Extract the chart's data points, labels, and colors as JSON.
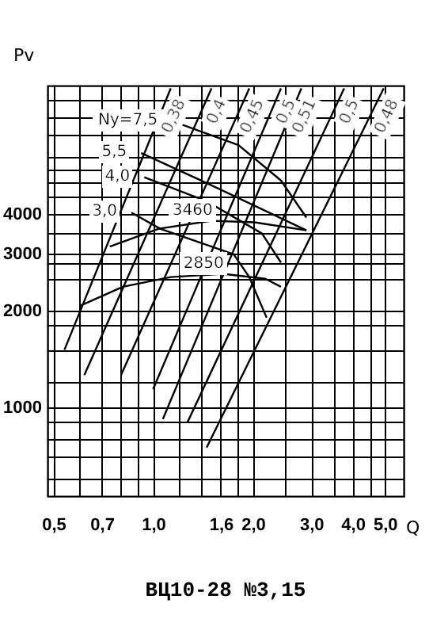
{
  "chart_data": {
    "type": "line",
    "title": "ВЦ10-28 №3,15",
    "xlabel": "Q",
    "ylabel": "Pv",
    "log": "xy",
    "grid": true,
    "legend": false,
    "xlim": [
      0.48,
      5.7
    ],
    "ylim": [
      530,
      10000
    ],
    "xticks": [
      {
        "value": 0.5,
        "label": "0,5"
      },
      {
        "value": 0.6,
        "label": null
      },
      {
        "value": 0.7,
        "label": "0,7"
      },
      {
        "value": 0.8,
        "label": null
      },
      {
        "value": 0.9,
        "label": null
      },
      {
        "value": 1.0,
        "label": "1,0"
      },
      {
        "value": 1.2,
        "label": null
      },
      {
        "value": 1.4,
        "label": null
      },
      {
        "value": 1.6,
        "label": "1,6"
      },
      {
        "value": 1.8,
        "label": null
      },
      {
        "value": 2.0,
        "label": "2,0"
      },
      {
        "value": 2.5,
        "label": null
      },
      {
        "value": 3.0,
        "label": "3,0"
      },
      {
        "value": 3.5,
        "label": null
      },
      {
        "value": 4.0,
        "label": "4,0"
      },
      {
        "value": 4.5,
        "label": null
      },
      {
        "value": 5.0,
        "label": "5,0"
      }
    ],
    "yticks": [
      {
        "value": 600,
        "label": null
      },
      {
        "value": 700,
        "label": null
      },
      {
        "value": 800,
        "label": null
      },
      {
        "value": 900,
        "label": null
      },
      1000,
      {
        "value": 1200,
        "label": null
      },
      {
        "value": 1500,
        "label": null
      },
      {
        "value": 1800,
        "label": null
      },
      2000,
      {
        "value": 2500,
        "label": null
      },
      {
        "value": 2800,
        "label": null
      },
      3000,
      {
        "value": 3500,
        "label": null
      },
      4000,
      {
        "value": 4500,
        "label": null
      },
      {
        "value": 5000,
        "label": null
      },
      {
        "value": 5500,
        "label": null
      },
      {
        "value": 6000,
        "label": null
      },
      {
        "value": 7000,
        "label": null
      },
      {
        "value": 8000,
        "label": null
      },
      {
        "value": 9000,
        "label": null
      }
    ],
    "series": [
      {
        "name": "3460",
        "color": "#000000",
        "x": [
          0.74,
          1.04,
          1.5,
          2.02,
          2.9
        ],
        "values": [
          3160,
          3590,
          3800,
          3760,
          3550
        ]
      },
      {
        "name": "2850",
        "color": "#000000",
        "x": [
          0.6,
          0.81,
          1.13,
          1.62,
          2.18,
          2.43
        ],
        "values": [
          2065,
          2370,
          2540,
          2600,
          2510,
          2370
        ]
      },
      {
        "name": "Ny=7,5",
        "color": "#000000",
        "x": [
          1.14,
          1.81,
          2.43,
          2.9
        ],
        "values": [
          7760,
          6530,
          5070,
          3890
        ]
      },
      {
        "name": "5,5",
        "color": "#000000",
        "x": [
          0.92,
          1.5,
          2.9
        ],
        "values": [
          6170,
          4900,
          3550
        ]
      },
      {
        "name": "4,0",
        "color": "#000000",
        "x": [
          0.94,
          1.45,
          2.13,
          2.43
        ],
        "values": [
          5190,
          4370,
          3470,
          2820
        ]
      },
      {
        "name": "3,0",
        "color": "#000000",
        "x": [
          0.86,
          1.05,
          1.75,
          1.95,
          2.2
        ],
        "values": [
          4030,
          3590,
          2990,
          2540,
          1900
        ]
      },
      {
        "name": "0,38",
        "color": "#000000",
        "x": [
          0.54,
          1.13
        ],
        "values": [
          1510,
          9800
        ]
      },
      {
        "name": "0,4",
        "color": "#000000",
        "x": [
          0.62,
          1.5
        ],
        "values": [
          1260,
          9800
        ]
      },
      {
        "name": "0,45",
        "color": "#000000",
        "x": [
          0.8,
          1.95
        ],
        "values": [
          1260,
          9800
        ]
      },
      {
        "name": "0,5",
        "color": "#000000",
        "x": [
          1.0,
          2.43
        ],
        "values": [
          1140,
          9800
        ]
      },
      {
        "name": "0,51",
        "color": "#000000",
        "x": [
          1.07,
          2.8
        ],
        "values": [
          920,
          9800
        ]
      },
      {
        "name": "0,5",
        "color": "#000000",
        "x": [
          1.27,
          3.77
        ],
        "values": [
          900,
          9800
        ]
      },
      {
        "name": "0,48",
        "color": "#000000",
        "x": [
          1.45,
          4.96
        ],
        "values": [
          750,
          9800
        ]
      }
    ]
  }
}
